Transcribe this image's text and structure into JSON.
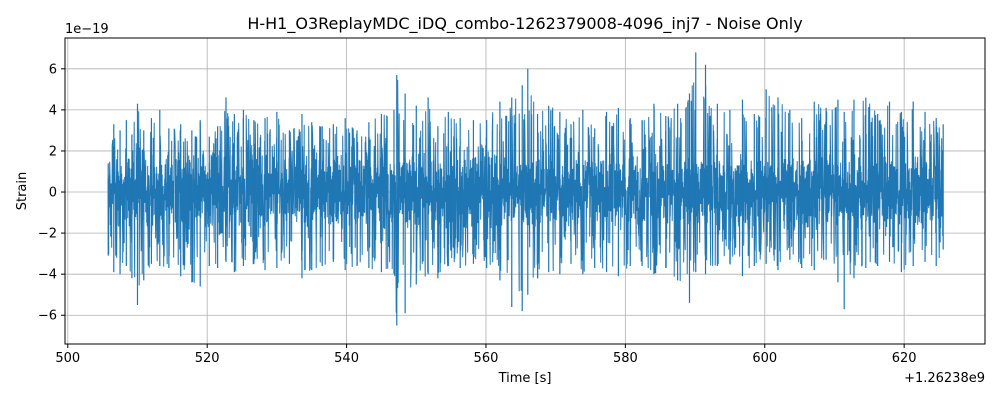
{
  "chart_data": {
    "type": "line",
    "title": "H-H1_O3ReplayMDC_iDQ_combo-1262379008-4096_inj7 - Noise Only",
    "xlabel": "Time [s]",
    "ylabel": "Strain",
    "x_offset_label": "+1.26238e9",
    "y_scale_label": "1e−19",
    "xlim": [
      499.6,
      631.6
    ],
    "ylim": [
      -7.4,
      7.5
    ],
    "xticks": [
      500,
      520,
      540,
      560,
      580,
      600,
      620
    ],
    "yticks": [
      -6,
      -4,
      -2,
      0,
      2,
      4,
      6
    ],
    "xtick_labels": [
      "500",
      "520",
      "540",
      "560",
      "580",
      "600",
      "620"
    ],
    "ytick_labels": [
      "−6",
      "−4",
      "−2",
      "0",
      "2",
      "4",
      "6"
    ],
    "grid": true,
    "series": [
      {
        "color": "#1f77b4",
        "x_range": [
          505.8,
          625.6
        ],
        "x": [
          505.8,
          506.6,
          507.5,
          508.4,
          509.2,
          510.0,
          510.9,
          512.0,
          513.2,
          514.5,
          516.2,
          517.8,
          519.0,
          520.3,
          521.5,
          522.7,
          523.9,
          525.2,
          526.7,
          528.3,
          530.0,
          531.8,
          533.6,
          535.0,
          536.5,
          538.1,
          539.8,
          541.5,
          543.2,
          545.0,
          546.8,
          547.2,
          548.4,
          550.0,
          551.7,
          553.1,
          554.6,
          556.3,
          558.2,
          560.1,
          562.0,
          563.7,
          565.2,
          566.0,
          567.4,
          569.0,
          570.6,
          572.2,
          573.9,
          575.6,
          577.3,
          579.0,
          580.7,
          582.4,
          584.1,
          585.8,
          587.5,
          589.2,
          590.1,
          591.5,
          593.2,
          595.0,
          596.8,
          598.5,
          600.2,
          601.9,
          603.6,
          605.3,
          607.1,
          608.8,
          610.5,
          611.4,
          612.8,
          614.5,
          616.2,
          617.9,
          619.6,
          621.3,
          623.0,
          624.6,
          625.6
        ],
        "upper": [
          1.4,
          3.3,
          3.0,
          3.5,
          2.8,
          4.3,
          3.0,
          3.6,
          4.0,
          3.1,
          3.3,
          3.0,
          3.5,
          2.7,
          3.2,
          4.6,
          3.8,
          4.0,
          3.5,
          3.6,
          3.9,
          3.0,
          3.8,
          3.4,
          3.2,
          3.3,
          3.6,
          3.0,
          3.4,
          3.8,
          4.0,
          5.7,
          4.8,
          4.2,
          4.6,
          3.2,
          3.9,
          3.6,
          3.5,
          3.5,
          4.4,
          4.6,
          5.2,
          6.0,
          3.8,
          4.2,
          3.9,
          3.3,
          4.0,
          3.1,
          3.9,
          4.1,
          3.6,
          3.5,
          4.3,
          3.7,
          4.3,
          4.8,
          6.8,
          6.2,
          4.3,
          4.0,
          4.5,
          3.8,
          5.0,
          4.6,
          4.0,
          3.6,
          4.4,
          4.1,
          4.5,
          3.9,
          4.5,
          4.6,
          3.8,
          4.4,
          3.9,
          4.4,
          3.9,
          3.6,
          3.3
        ],
        "lower": [
          -3.1,
          -3.9,
          -4.0,
          -3.6,
          -4.2,
          -5.5,
          -4.3,
          -3.5,
          -3.6,
          -3.7,
          -4.1,
          -4.4,
          -4.6,
          -3.6,
          -3.7,
          -3.4,
          -3.9,
          -3.6,
          -3.5,
          -3.8,
          -3.7,
          -3.5,
          -4.2,
          -3.8,
          -3.6,
          -3.4,
          -3.8,
          -3.6,
          -3.7,
          -3.9,
          -4.0,
          -6.5,
          -5.9,
          -4.5,
          -4.0,
          -4.2,
          -3.6,
          -3.7,
          -3.5,
          -3.7,
          -4.3,
          -5.6,
          -5.8,
          -5.0,
          -4.2,
          -3.9,
          -4.0,
          -3.5,
          -4.0,
          -3.7,
          -3.9,
          -4.1,
          -3.6,
          -3.6,
          -4.0,
          -3.7,
          -4.3,
          -5.4,
          -3.9,
          -4.0,
          -3.6,
          -3.5,
          -4.1,
          -3.6,
          -3.5,
          -3.8,
          -3.3,
          -3.7,
          -3.8,
          -3.3,
          -4.4,
          -5.7,
          -4.2,
          -3.7,
          -3.6,
          -3.4,
          -3.9,
          -3.6,
          -3.4,
          -3.6,
          -2.8
        ],
        "core": 2.0
      }
    ]
  }
}
